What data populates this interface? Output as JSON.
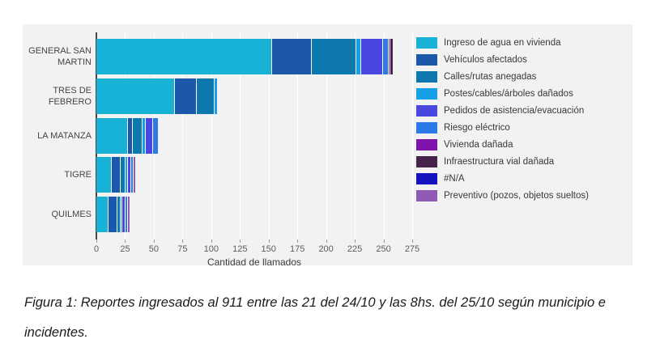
{
  "chart_data": {
    "type": "bar",
    "orientation": "horizontal",
    "stacked": true,
    "title": "",
    "xlabel": "Cantidad de llamados",
    "ylabel": "",
    "xlim": [
      0,
      275
    ],
    "xticks": [
      0,
      25,
      50,
      75,
      100,
      125,
      150,
      175,
      200,
      225,
      250,
      275
    ],
    "grid": true,
    "legend_position": "right",
    "categories": [
      "GENERAL SAN MARTIN",
      "TRES DE FEBRERO",
      "LA MATANZA",
      "TIGRE",
      "QUILMES"
    ],
    "series": [
      {
        "name": "Ingreso de agua en vivienda",
        "color": "#17b2d6",
        "values": [
          152,
          68,
          27,
          13,
          10
        ]
      },
      {
        "name": "Vehículos afectados",
        "color": "#1b57aa",
        "values": [
          34,
          18,
          3,
          7,
          7
        ]
      },
      {
        "name": "Calles/rutas anegadas",
        "color": "#0d78ad",
        "values": [
          38,
          15,
          8,
          3,
          2
        ]
      },
      {
        "name": "Postes/cables/árboles dañados",
        "color": "#149fe6",
        "values": [
          4,
          2,
          2,
          2,
          1
        ]
      },
      {
        "name": "Pedidos de asistencia/evacuación",
        "color": "#4a47e0",
        "values": [
          18,
          0,
          6,
          2,
          2
        ]
      },
      {
        "name": "Riesgo eléctrico",
        "color": "#2b7ae8",
        "values": [
          4,
          0,
          4,
          1,
          1
        ]
      },
      {
        "name": "Vivienda dañada",
        "color": "#8013ad",
        "values": [
          1,
          0,
          0,
          0,
          0
        ]
      },
      {
        "name": "Infraestructura vial dañada",
        "color": "#46254a",
        "values": [
          2,
          0,
          0,
          0,
          0
        ]
      },
      {
        "name": "#N/A",
        "color": "#1413bd",
        "values": [
          0,
          0,
          0,
          0,
          0
        ]
      },
      {
        "name": "Preventivo (pozos, objetos sueltos)",
        "color": "#9059b4",
        "values": [
          0,
          0,
          0,
          2,
          2
        ]
      }
    ]
  },
  "caption": {
    "text": "Figura 1: Reportes ingresados al 911 entre las 21 del 24/10 y las 8hs. del 25/10 según municipio e incidentes."
  },
  "style": {
    "panel_background": "#f2f2f2",
    "gridline_color": "#ffffff",
    "axis_color": "#484848"
  }
}
